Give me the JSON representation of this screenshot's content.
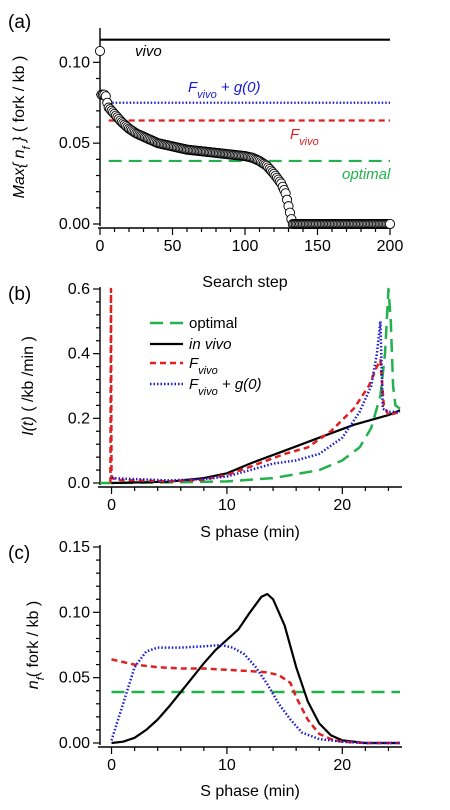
{
  "chart_data": [
    {
      "type": "scatter",
      "panel_label": "(a)",
      "xlabel": "Search step",
      "ylabel": "Max{ n_f } ( fork / kb )",
      "xlim": [
        0,
        200
      ],
      "ylim": [
        0.0,
        0.12
      ],
      "xticks": [
        0,
        50,
        100,
        150,
        200
      ],
      "yticks": [
        0.0,
        0.05,
        0.1
      ],
      "ytick_labels": [
        "0.00",
        "0.05",
        "0.10"
      ],
      "hlines": [
        {
          "name": "vivo",
          "label_main": "vivo",
          "label_sub": "",
          "label_suffix": "",
          "y": 0.114,
          "color": "#000000",
          "dash": ""
        },
        {
          "name": "fvivo-g0",
          "label_main": "F",
          "label_sub": "vivo",
          "label_suffix": " + g(0)",
          "y": 0.075,
          "color": "#1a1ad6",
          "dash": "1.5,2"
        },
        {
          "name": "fvivo",
          "label_main": "F",
          "label_sub": "vivo",
          "label_suffix": "",
          "y": 0.064,
          "color": "#e02020",
          "dash": "6,4"
        },
        {
          "name": "optimal",
          "label_main": "optimal",
          "label_sub": "",
          "label_suffix": "",
          "y": 0.039,
          "color": "#22b24c",
          "dash": "13,7"
        }
      ],
      "scatter_curve": [
        [
          0,
          0.107
        ],
        [
          1,
          0.08
        ],
        [
          2,
          0.08
        ],
        [
          3,
          0.08
        ],
        [
          4,
          0.079
        ],
        [
          5,
          0.075
        ],
        [
          6,
          0.072
        ],
        [
          8,
          0.07
        ],
        [
          10,
          0.068
        ],
        [
          12,
          0.066
        ],
        [
          15,
          0.063
        ],
        [
          20,
          0.059
        ],
        [
          25,
          0.056
        ],
        [
          30,
          0.054
        ],
        [
          40,
          0.05
        ],
        [
          50,
          0.048
        ],
        [
          60,
          0.046
        ],
        [
          70,
          0.045
        ],
        [
          80,
          0.044
        ],
        [
          90,
          0.043
        ],
        [
          100,
          0.042
        ],
        [
          105,
          0.041
        ],
        [
          110,
          0.039
        ],
        [
          115,
          0.036
        ],
        [
          120,
          0.031
        ],
        [
          125,
          0.025
        ],
        [
          128,
          0.019
        ],
        [
          130,
          0.011
        ],
        [
          132,
          0.003
        ],
        [
          133,
          0.0
        ],
        [
          200,
          0.0
        ]
      ]
    },
    {
      "type": "line",
      "panel_label": "(b)",
      "xlabel": "S phase (min)",
      "ylabel": "I(t) ( /kb /min )",
      "xlim": [
        -1,
        25
      ],
      "ylim": [
        0,
        0.6
      ],
      "xticks": [
        0,
        10,
        20
      ],
      "yticks": [
        0.0,
        0.2,
        0.4,
        0.6
      ],
      "ytick_labels": [
        "0.0",
        "0.2",
        "0.4",
        "0.6"
      ],
      "legend": [
        {
          "main": "optimal",
          "sub": "",
          "suffix": "",
          "italic": false
        },
        {
          "main": "in vivo",
          "sub": "",
          "suffix": "",
          "italic": true
        },
        {
          "main": "F",
          "sub": "vivo",
          "suffix": "",
          "italic": true
        },
        {
          "main": "F",
          "sub": "vivo",
          "suffix": " + g(0)",
          "italic": true
        }
      ],
      "series": [
        {
          "color": "#22b24c",
          "dash": "13,7",
          "width": 2.5,
          "points": [
            [
              -1,
              0
            ],
            [
              0,
              0
            ],
            [
              5,
              0.002
            ],
            [
              10,
              0.005
            ],
            [
              14,
              0.015
            ],
            [
              18,
              0.04
            ],
            [
              20,
              0.07
            ],
            [
              21.5,
              0.11
            ],
            [
              22.5,
              0.17
            ],
            [
              23.3,
              0.27
            ],
            [
              23.7,
              0.4
            ],
            [
              24.0,
              0.6
            ],
            [
              24.2,
              0.5
            ],
            [
              24.4,
              0.3
            ],
            [
              24.6,
              0.24
            ],
            [
              25,
              0.23
            ]
          ]
        },
        {
          "color": "#000000",
          "dash": "",
          "width": 2.2,
          "points": [
            [
              0,
              0
            ],
            [
              5,
              0.004
            ],
            [
              8,
              0.015
            ],
            [
              10,
              0.03
            ],
            [
              12,
              0.06
            ],
            [
              15,
              0.1
            ],
            [
              18,
              0.14
            ],
            [
              21,
              0.18
            ],
            [
              23,
              0.2
            ],
            [
              24,
              0.21
            ],
            [
              25,
              0.225
            ]
          ]
        },
        {
          "color": "#e02020",
          "dash": "6,4",
          "width": 2.5,
          "points": [
            [
              -0.1,
              0
            ],
            [
              -0.05,
              0.6
            ],
            [
              0,
              0.02
            ],
            [
              0.3,
              0.01
            ],
            [
              5,
              0.005
            ],
            [
              8,
              0.01
            ],
            [
              10,
              0.025
            ],
            [
              12,
              0.05
            ],
            [
              15,
              0.09
            ],
            [
              17,
              0.11
            ],
            [
              19,
              0.16
            ],
            [
              21,
              0.23
            ],
            [
              22.3,
              0.3
            ],
            [
              23,
              0.36
            ],
            [
              23.3,
              0.38
            ],
            [
              23.6,
              0.24
            ],
            [
              24,
              0.21
            ],
            [
              25,
              0.22
            ]
          ]
        },
        {
          "color": "#1a1ad6",
          "dash": "1.5,2",
          "width": 2.5,
          "points": [
            [
              0,
              0.015
            ],
            [
              2,
              0.012
            ],
            [
              5,
              0.008
            ],
            [
              8,
              0.012
            ],
            [
              10,
              0.02
            ],
            [
              12,
              0.04
            ],
            [
              14,
              0.06
            ],
            [
              16,
              0.07
            ],
            [
              18,
              0.09
            ],
            [
              20,
              0.14
            ],
            [
              21.5,
              0.22
            ],
            [
              22.5,
              0.3
            ],
            [
              23,
              0.4
            ],
            [
              23.3,
              0.5
            ],
            [
              23.5,
              0.23
            ],
            [
              24,
              0.22
            ],
            [
              25,
              0.22
            ]
          ]
        }
      ]
    },
    {
      "type": "line",
      "panel_label": "(c)",
      "xlabel": "S phase (min)",
      "ylabel": "n_f ( fork / kb )",
      "xlim": [
        -1,
        25
      ],
      "ylim": [
        0,
        0.15
      ],
      "xticks": [
        0,
        10,
        20
      ],
      "yticks": [
        0.0,
        0.05,
        0.1,
        0.15
      ],
      "ytick_labels": [
        "0.00",
        "0.05",
        "0.10",
        "0.15"
      ],
      "series": [
        {
          "color": "#22b24c",
          "dash": "13,7",
          "width": 2.5,
          "points": [
            [
              0,
              0.039
            ],
            [
              25,
              0.039
            ]
          ]
        },
        {
          "color": "#000000",
          "dash": "",
          "width": 2.2,
          "points": [
            [
              0,
              0
            ],
            [
              1,
              0.001
            ],
            [
              2,
              0.004
            ],
            [
              3,
              0.01
            ],
            [
              4,
              0.018
            ],
            [
              5,
              0.028
            ],
            [
              6,
              0.039
            ],
            [
              7,
              0.05
            ],
            [
              8,
              0.061
            ],
            [
              9,
              0.071
            ],
            [
              10,
              0.079
            ],
            [
              11,
              0.087
            ],
            [
              12,
              0.1
            ],
            [
              13,
              0.112
            ],
            [
              13.5,
              0.114
            ],
            [
              14,
              0.11
            ],
            [
              15,
              0.09
            ],
            [
              16,
              0.058
            ],
            [
              17,
              0.032
            ],
            [
              18,
              0.015
            ],
            [
              19,
              0.006
            ],
            [
              20,
              0.002
            ],
            [
              22,
              0
            ],
            [
              25,
              0
            ]
          ]
        },
        {
          "color": "#e02020",
          "dash": "6,4",
          "width": 2.5,
          "points": [
            [
              0,
              0.064
            ],
            [
              2,
              0.06
            ],
            [
              4,
              0.058
            ],
            [
              6,
              0.057
            ],
            [
              8,
              0.057
            ],
            [
              10,
              0.056
            ],
            [
              12,
              0.055
            ],
            [
              13.5,
              0.054
            ],
            [
              14.5,
              0.052
            ],
            [
              15.5,
              0.046
            ],
            [
              16,
              0.035
            ],
            [
              17,
              0.018
            ],
            [
              18,
              0.007
            ],
            [
              19,
              0.003
            ],
            [
              20,
              0.001
            ],
            [
              22,
              0
            ],
            [
              25,
              0
            ]
          ]
        },
        {
          "color": "#1a1ad6",
          "dash": "1.5,2",
          "width": 2.5,
          "points": [
            [
              0,
              0.002
            ],
            [
              1,
              0.03
            ],
            [
              2,
              0.058
            ],
            [
              3,
              0.07
            ],
            [
              4,
              0.073
            ],
            [
              6,
              0.073
            ],
            [
              8,
              0.074
            ],
            [
              9.5,
              0.075
            ],
            [
              10.5,
              0.073
            ],
            [
              11.5,
              0.068
            ],
            [
              12.5,
              0.058
            ],
            [
              13.5,
              0.045
            ],
            [
              14.5,
              0.03
            ],
            [
              15.5,
              0.018
            ],
            [
              16.5,
              0.008
            ],
            [
              18,
              0.003
            ],
            [
              20,
              0.001
            ],
            [
              22,
              0
            ],
            [
              25,
              0
            ]
          ]
        }
      ]
    }
  ]
}
